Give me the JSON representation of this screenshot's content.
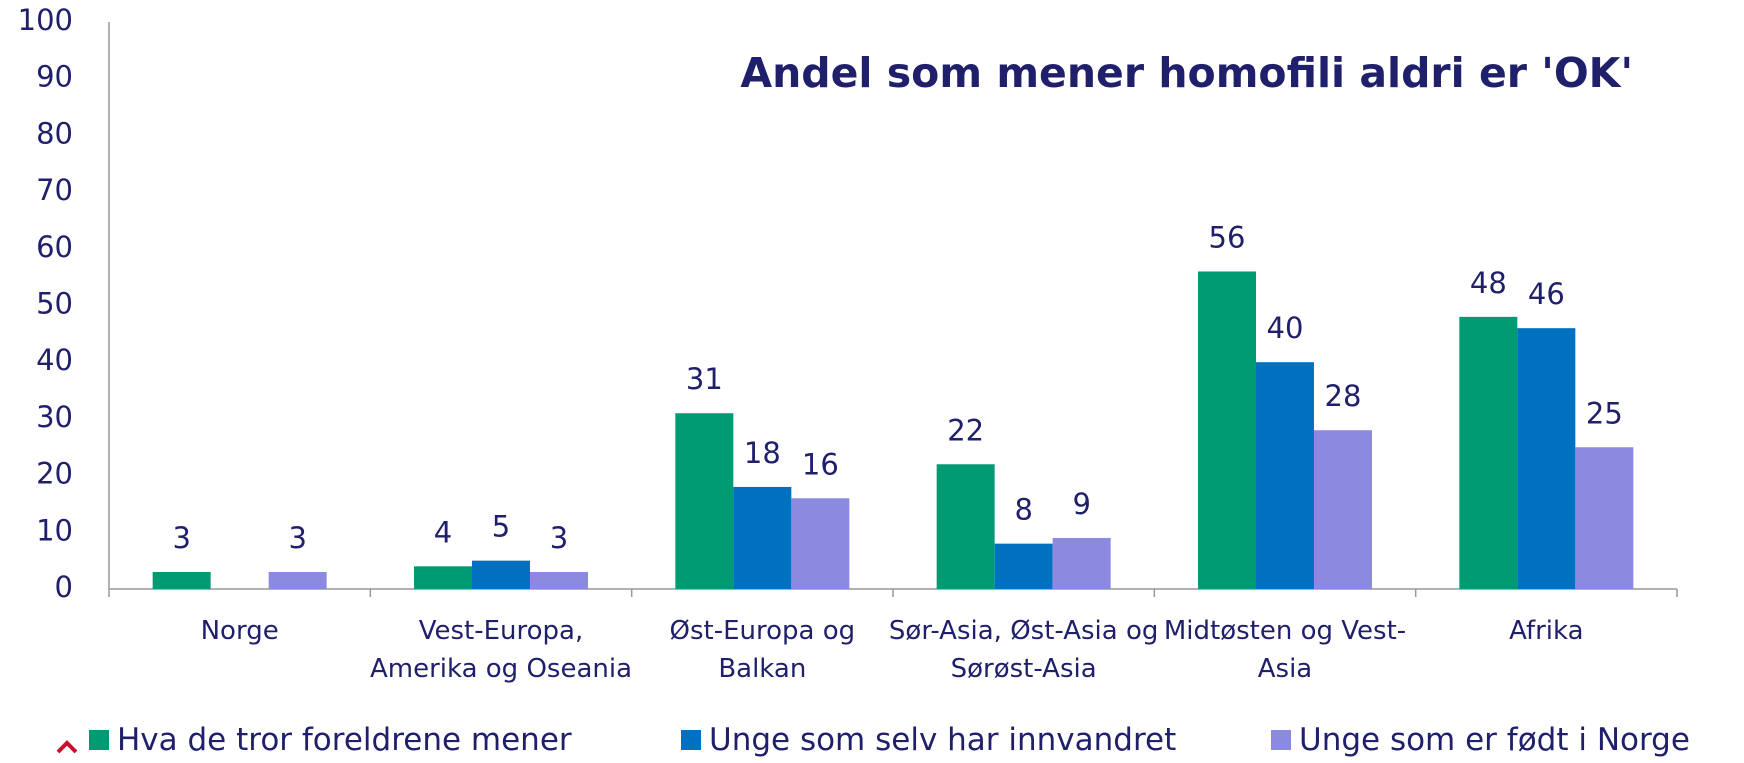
{
  "chart_data": {
    "type": "bar",
    "title": "Andel som mener homofili aldri er 'OK'",
    "categories": [
      "Norge",
      "Vest-Europa, Amerika og Oseania",
      "Øst-Europa og Balkan",
      "Sør-Asia, Øst-Asia og Sørøst-Asia",
      "Midtøsten og Vest-Asia",
      "Afrika"
    ],
    "series": [
      {
        "name": "Hva de tror foreldrene mener",
        "color": "#009b72",
        "values": [
          3,
          4,
          31,
          22,
          56,
          48
        ]
      },
      {
        "name": "Unge som selv har innvandret",
        "color": "#0070c0",
        "values": [
          null,
          5,
          18,
          8,
          40,
          46
        ]
      },
      {
        "name": "Unge som er født i Norge",
        "color": "#8b89e0",
        "values": [
          3,
          3,
          16,
          9,
          28,
          25
        ]
      }
    ],
    "ylim": [
      0,
      100
    ],
    "yticks": [
      0,
      10,
      20,
      30,
      40,
      50,
      60,
      70,
      80,
      90,
      100
    ],
    "grid": false,
    "legend": "bottom"
  }
}
